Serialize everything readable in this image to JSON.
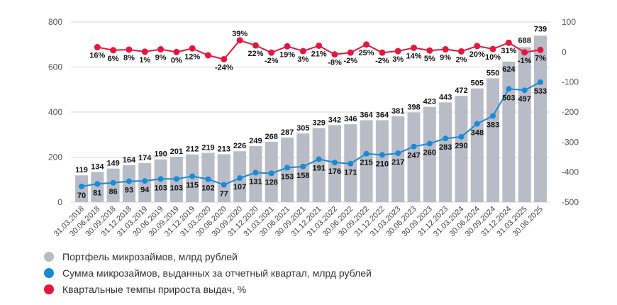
{
  "chart_data": {
    "type": "bar+line",
    "categories": [
      "31.03.2018",
      "30.06.2018",
      "30.09.2018",
      "31.12.2018",
      "31.03.2019",
      "30.06.2019",
      "30.09.2019",
      "31.12.2019",
      "31.03.2020",
      "30.06.2020",
      "30.09.2020",
      "31.12.2020",
      "31.03.2021",
      "30.06.2021",
      "30.09.2021",
      "31.12.2021",
      "31.03.2022",
      "30.06.2022",
      "30.09.2022",
      "31.12.2022",
      "31.03.2023",
      "30.06.2023",
      "30.09.2023",
      "31.12.2023",
      "31.03.2024",
      "30.06.2024",
      "30.09.2024",
      "31.12.2024",
      "31.03.2025",
      "30.06.2025"
    ],
    "left_axis": {
      "ylim": [
        0,
        800
      ],
      "ticks": [
        0,
        200,
        400,
        600,
        800
      ]
    },
    "right_axis": {
      "ylim": [
        -500,
        100
      ],
      "ticks": [
        -500,
        -400,
        -300,
        -200,
        -100,
        0,
        100
      ]
    },
    "grid": true,
    "legend_placement": "bottom-left",
    "series": [
      {
        "name": "Портфель микрозаймов, млрд рублей",
        "type": "bar",
        "axis": "left",
        "color": "#b9bcc6",
        "values": [
          119,
          134,
          149,
          164,
          174,
          190,
          201,
          212,
          219,
          213,
          226,
          249,
          268,
          287,
          305,
          329,
          342,
          346,
          364,
          364,
          381,
          398,
          423,
          443,
          472,
          505,
          550,
          624,
          688,
          739
        ]
      },
      {
        "name": "Сумма микрозаймов, выданных за отчетный квартал, млрд рублей",
        "type": "line",
        "axis": "left",
        "color": "#1a8ad4",
        "values": [
          70,
          81,
          86,
          93,
          94,
          103,
          103,
          115,
          102,
          77,
          107,
          131,
          128,
          153,
          158,
          191,
          176,
          171,
          215,
          210,
          217,
          247,
          260,
          283,
          290,
          348,
          383,
          503,
          497,
          533
        ]
      },
      {
        "name": "Квартальные темпы прироста выдач, %",
        "type": "line",
        "axis": "right",
        "color": "#e3173e",
        "values": [
          null,
          16,
          6,
          8,
          1,
          9,
          0,
          12,
          -11,
          -24,
          39,
          22,
          -2,
          19,
          3,
          21,
          -8,
          -2,
          25,
          -2,
          3,
          14,
          5,
          9,
          2,
          20,
          10,
          31,
          -1,
          7
        ],
        "labels": [
          "",
          "16%",
          "6%",
          "8%",
          "1%",
          "9%",
          "0%",
          "12%",
          "",
          "-24%",
          "39%",
          "22%",
          "-2%",
          "19%",
          "3%",
          "21%",
          "-8%",
          "-2%",
          "25%",
          "-2%",
          "3%",
          "14%",
          "5%",
          "9%",
          "2%",
          "20%",
          "10%",
          "31%",
          "-1%",
          "7%"
        ]
      }
    ]
  }
}
